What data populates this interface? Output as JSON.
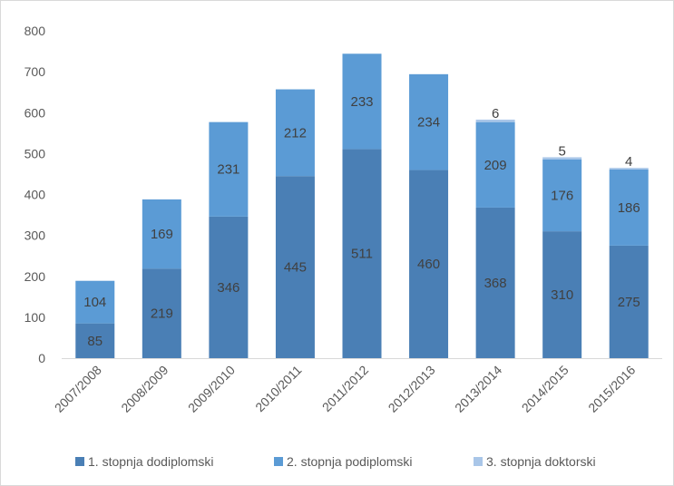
{
  "chart_data": {
    "type": "bar",
    "stacked": true,
    "categories": [
      "2007/2008",
      "2008/2009",
      "2009/2010",
      "2010/2011",
      "2011/2012",
      "2012/2013",
      "2013/2014",
      "2014/2015",
      "2015/2016"
    ],
    "series": [
      {
        "name": "1. stopnja dodiplomski",
        "color": "#4a7fb5",
        "values": [
          85,
          219,
          346,
          445,
          511,
          460,
          368,
          310,
          275
        ],
        "labels": [
          "85",
          "219",
          "346",
          "445",
          "511",
          "460",
          "368",
          "310",
          "275"
        ]
      },
      {
        "name": "2. stopnja podiplomski",
        "color": "#5b9bd5",
        "values": [
          104,
          169,
          231,
          212,
          233,
          234,
          209,
          176,
          186
        ],
        "labels": [
          "104",
          "169",
          "231",
          "212",
          "233",
          "234",
          "209",
          "176",
          "186"
        ]
      },
      {
        "name": "3. stopnja doktorski",
        "color": "#a9c6e8",
        "values": [
          0,
          0,
          0,
          0,
          0,
          0,
          6,
          5,
          4
        ],
        "labels": [
          "",
          "",
          "",
          "",
          "",
          "",
          "6",
          "5",
          "4"
        ]
      }
    ],
    "ylim": [
      0,
      800
    ],
    "yticks": [
      "0",
      "100",
      "200",
      "300",
      "400",
      "500",
      "600",
      "700",
      "800"
    ],
    "grid": false,
    "legend_position": "bottom"
  }
}
